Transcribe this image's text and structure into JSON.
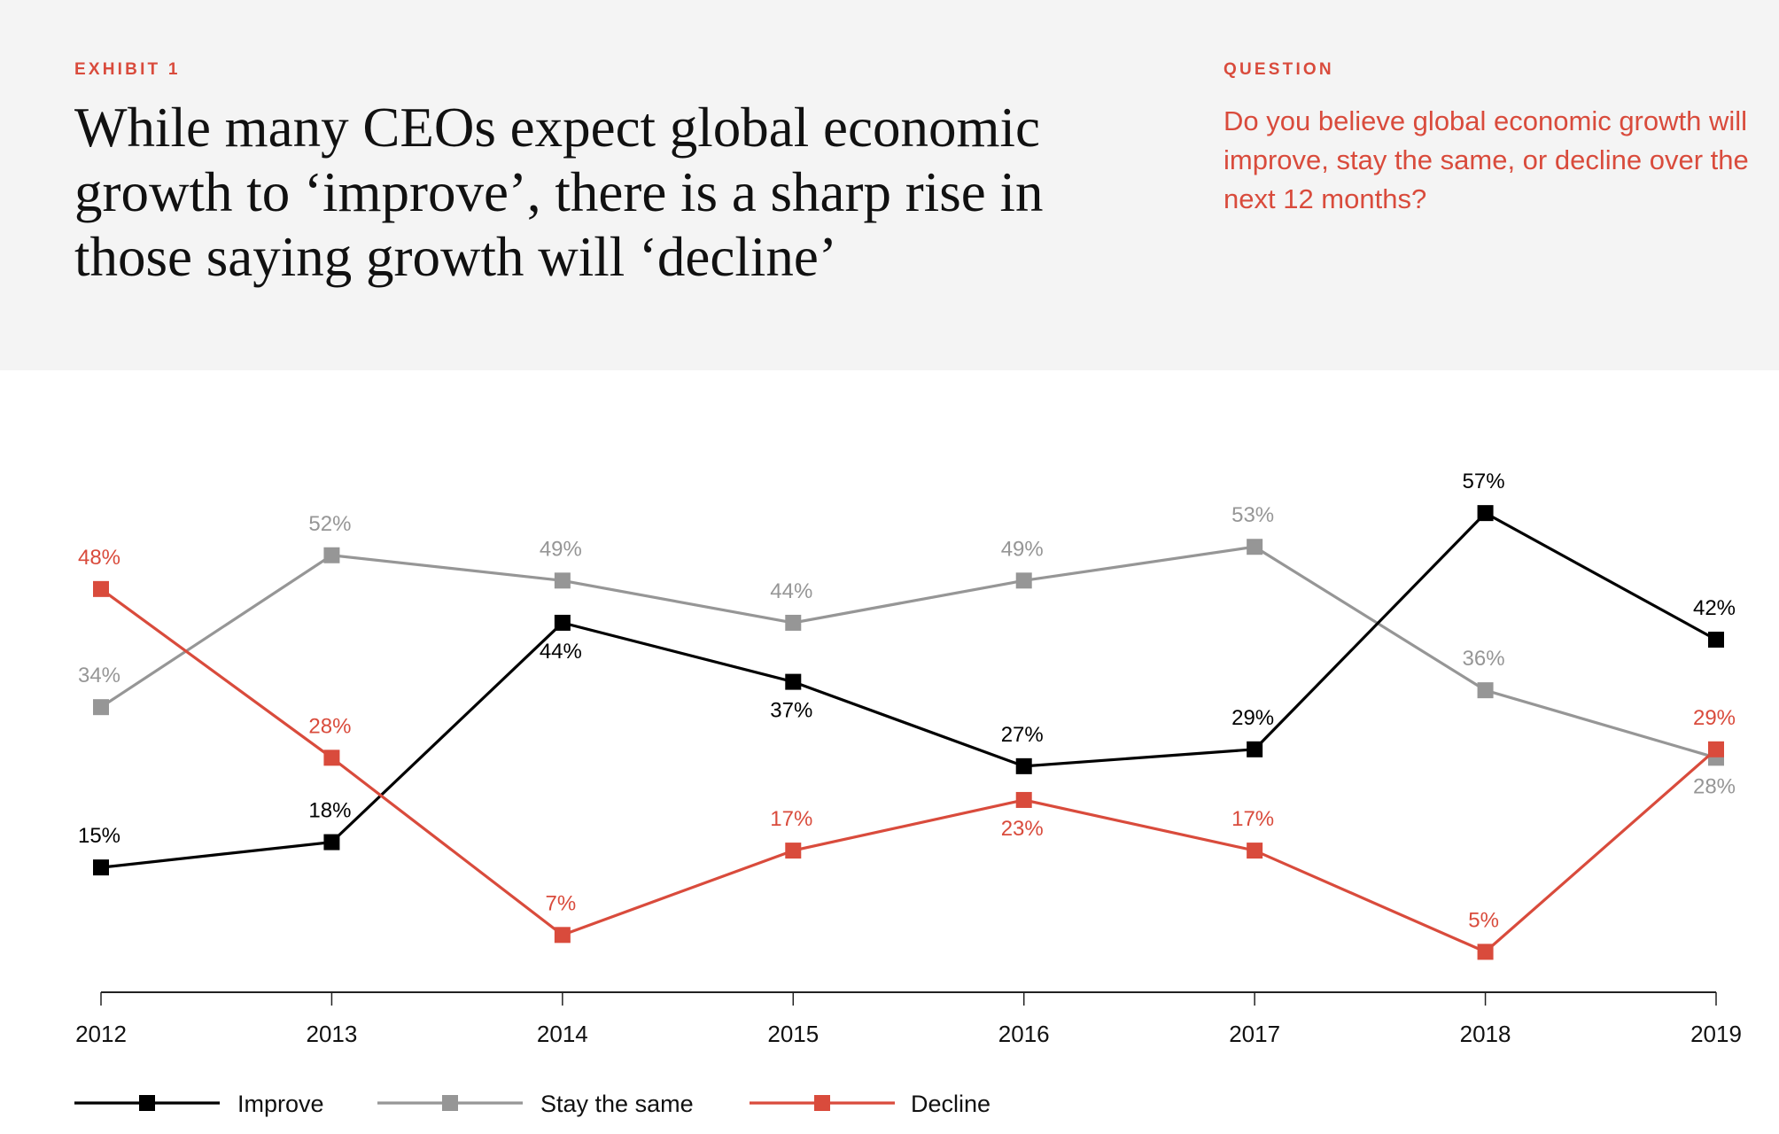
{
  "header": {
    "exhibit_label": "EXHIBIT 1",
    "title": "While many CEOs expect global economic growth to ‘improve’, there is a sharp rise in those saying growth will ‘decline’",
    "question_label": "QUESTION",
    "question_text": "Do you believe global economic growth will improve, stay the same, or decline over the next 12 months?"
  },
  "colors": {
    "header_bg": "#f4f4f4",
    "accent_red": "#d94b3c",
    "improve": "#000000",
    "stay": "#969696",
    "decline": "#d94b3c"
  },
  "chart_data": {
    "type": "line",
    "title": "While many CEOs expect global economic growth to ‘improve’, there is a sharp rise in those saying growth will ‘decline’",
    "xlabel": "",
    "ylabel": "",
    "x": [
      "2012",
      "2013",
      "2014",
      "2015",
      "2016",
      "2017",
      "2018",
      "2019"
    ],
    "ylim": [
      0,
      60
    ],
    "grid": false,
    "y_axis_visible": false,
    "value_suffix": "%",
    "legend_position": "bottom-left",
    "series": [
      {
        "name": "Improve",
        "color": "#000000",
        "values": [
          15,
          18,
          44,
          37,
          27,
          29,
          57,
          42
        ],
        "label_placement": [
          "above",
          "above",
          "below",
          "below",
          "above",
          "above",
          "above",
          "above"
        ]
      },
      {
        "name": "Stay the same",
        "color": "#969696",
        "values": [
          34,
          52,
          49,
          44,
          49,
          53,
          36,
          28
        ],
        "label_placement": [
          "above",
          "above",
          "above",
          "above",
          "above",
          "above",
          "above",
          "below"
        ]
      },
      {
        "name": "Decline",
        "color": "#d94b3c",
        "values": [
          48,
          28,
          7,
          17,
          23,
          17,
          5,
          29
        ],
        "label_placement": [
          "above",
          "above",
          "above",
          "above",
          "below",
          "above",
          "above",
          "above"
        ]
      }
    ]
  }
}
